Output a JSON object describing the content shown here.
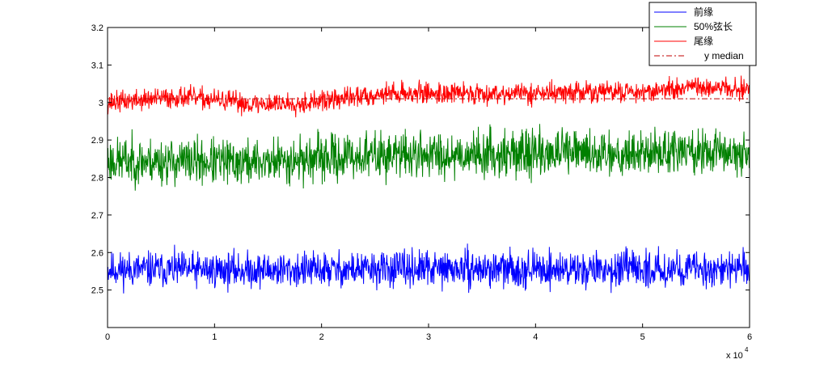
{
  "chart_data": {
    "type": "line",
    "title": "",
    "xlabel": "",
    "ylabel": "",
    "x_multiplier_label": "x 10",
    "x_multiplier_exponent": "4",
    "xlim": [
      0,
      6
    ],
    "ylim": [
      2.4,
      3.2
    ],
    "x_ticks": [
      0,
      1,
      2,
      3,
      4,
      5,
      6
    ],
    "x_tick_labels": [
      "0",
      "1",
      "2",
      "3",
      "4",
      "5",
      "6"
    ],
    "y_ticks": [
      2.5,
      2.6,
      2.7,
      2.8,
      2.9,
      3.0,
      3.1,
      3.2
    ],
    "y_tick_labels": [
      "2.5",
      "2.6",
      "2.7",
      "2.8",
      "2.9",
      "3",
      "3.1",
      "3.2"
    ],
    "grid": false,
    "legend_position": "top-right",
    "series": [
      {
        "name": "前缘",
        "color": "#0000ff",
        "style": "solid",
        "baseline": [
          [
            0,
            2.555
          ],
          [
            1.5,
            2.553
          ],
          [
            3,
            2.556
          ],
          [
            4.5,
            2.555
          ],
          [
            6,
            2.556
          ]
        ],
        "noise_amplitude": 0.05,
        "seed": 11
      },
      {
        "name": "50%弦长",
        "color": "#008000",
        "style": "solid",
        "baseline": [
          [
            0,
            2.845
          ],
          [
            1.3,
            2.84
          ],
          [
            2.6,
            2.86
          ],
          [
            4,
            2.865
          ],
          [
            6,
            2.868
          ]
        ],
        "noise_amplitude": 0.065,
        "seed": 23
      },
      {
        "name": "尾缘",
        "color": "#ff0000",
        "style": "solid",
        "baseline": [
          [
            0,
            3.0
          ],
          [
            0.7,
            3.015
          ],
          [
            1.4,
            2.995
          ],
          [
            1.9,
            3.0
          ],
          [
            2.6,
            3.025
          ],
          [
            4,
            3.025
          ],
          [
            5,
            3.03
          ],
          [
            5.6,
            3.04
          ],
          [
            6,
            3.035
          ]
        ],
        "noise_amplitude": 0.03,
        "seed": 37
      },
      {
        "name": "y median",
        "color": "#c00000",
        "style": "dashdot",
        "values": [
          [
            0,
            3.01
          ],
          [
            6,
            3.01
          ]
        ]
      }
    ]
  }
}
